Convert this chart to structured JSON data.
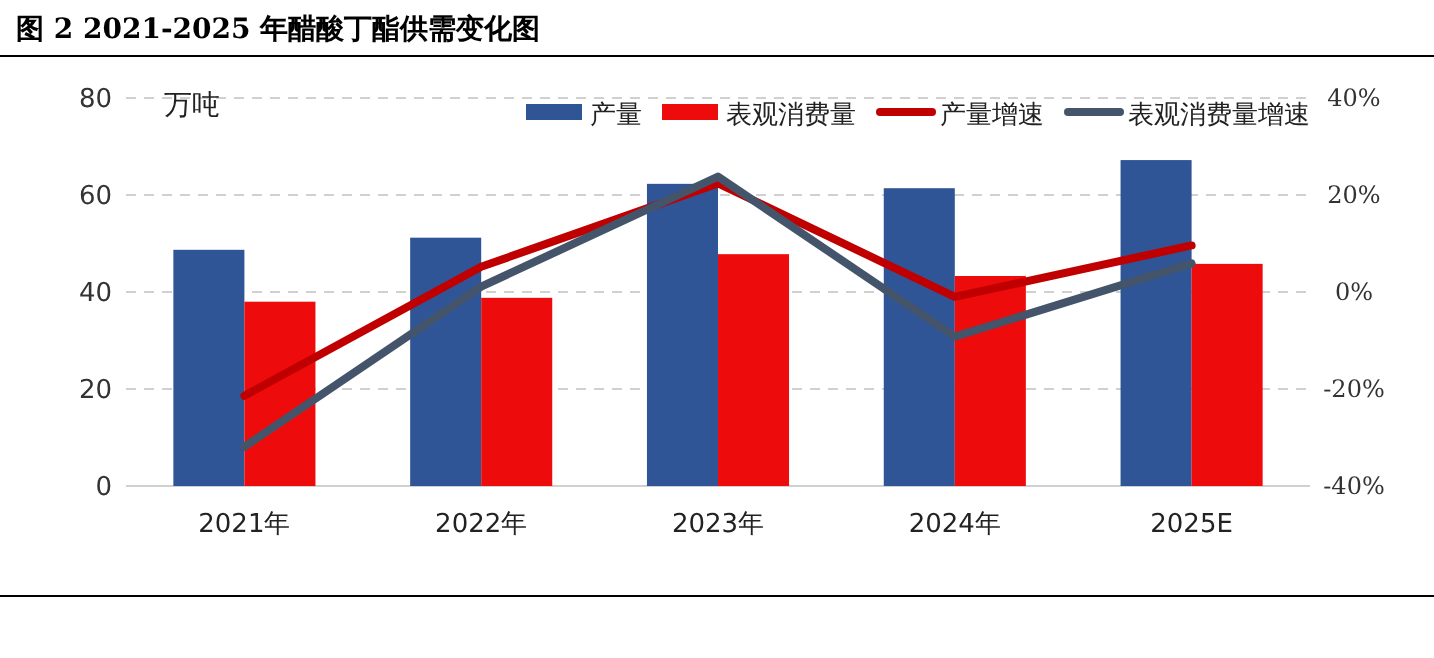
{
  "chart_data": {
    "type": "bar",
    "title": "图 2 2021-2025 年醋酸丁酯供需变化图",
    "ylabel": "万吨",
    "categories": [
      "2021年",
      "2022年",
      "2023年",
      "2024年",
      "2025E"
    ],
    "series": [
      {
        "name": "产量",
        "color": "#2f5597",
        "values": [
          48.7,
          51.2,
          62.3,
          61.4,
          67.2
        ]
      },
      {
        "name": "表观消费量",
        "color": "#ee0b0b",
        "values": [
          38.0,
          38.8,
          47.8,
          43.3,
          45.8
        ]
      },
      {
        "name": "产量增速",
        "type": "line",
        "axis": "y2",
        "color": "#c00000",
        "values": [
          -21.4,
          5.2,
          22.4,
          -1.0,
          9.6
        ]
      },
      {
        "name": "表观消费量增速",
        "type": "line",
        "axis": "y2",
        "color": "#44546a",
        "values": [
          -31.9,
          1.1,
          23.8,
          -9.2,
          5.9
        ]
      }
    ],
    "ylim": [
      0,
      80
    ],
    "yticks": [
      0,
      20,
      40,
      60,
      80
    ],
    "y2lim": [
      -40,
      40
    ],
    "y2ticks": [
      {
        "value": -40,
        "label": "-40%"
      },
      {
        "value": -20,
        "label": "-20%"
      },
      {
        "value": 0,
        "label": "0%"
      },
      {
        "value": 20,
        "label": "20%"
      },
      {
        "value": 40,
        "label": "40%"
      }
    ],
    "grid": "y",
    "legend": "top right",
    "marker": "none",
    "line_style": "solid"
  }
}
